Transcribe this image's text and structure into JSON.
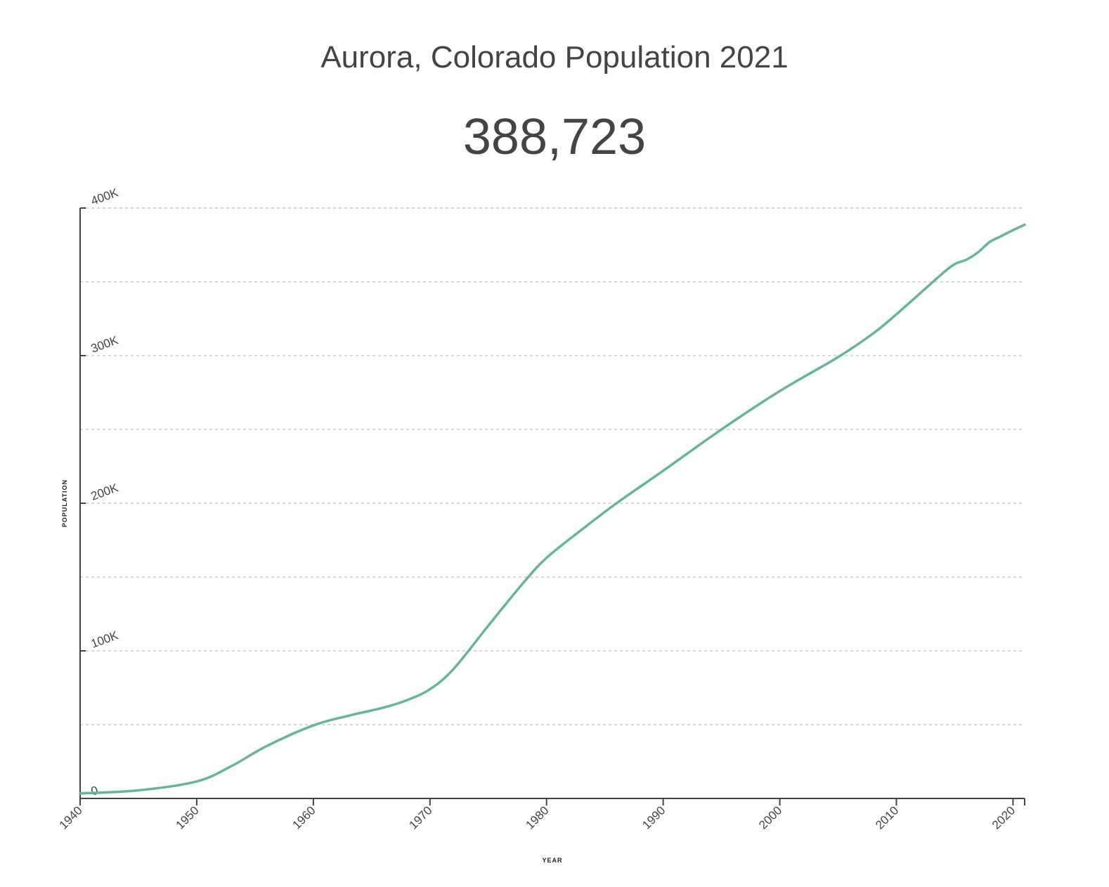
{
  "header": {
    "title": "Aurora, Colorado Population 2021",
    "current_value": "388,723"
  },
  "colors": {
    "line": "#66b3a0",
    "grid": "#cccccc",
    "axis": "#444444",
    "text": "#444444"
  },
  "chart_data": {
    "type": "line",
    "xlabel": "YEAR",
    "ylabel": "POPULATION",
    "xlim": [
      1940,
      2021
    ],
    "ylim": [
      0,
      400000
    ],
    "grid": true,
    "grid_values": [
      50000,
      100000,
      150000,
      200000,
      250000,
      300000,
      350000,
      400000
    ],
    "x_ticks": [
      1940,
      1950,
      1960,
      1970,
      1980,
      1990,
      2000,
      2010,
      2020
    ],
    "x_tick_labels": [
      "1940",
      "1950",
      "1960",
      "1970",
      "1980",
      "1990",
      "2000",
      "2010",
      "2020"
    ],
    "y_ticks": [
      0,
      100000,
      200000,
      300000,
      400000
    ],
    "y_tick_labels": [
      "0",
      "100K",
      "200K",
      "300K",
      "400K"
    ],
    "series": [
      {
        "x": [
          1940,
          1945,
          1950,
          1953,
          1956,
          1960,
          1963,
          1966,
          1968,
          1970,
          1972,
          1975,
          1978,
          1980,
          1983,
          1986,
          1990,
          1995,
          2000,
          2005,
          2008,
          2010,
          2012,
          2014,
          2015,
          2016,
          2017,
          2018,
          2019,
          2020,
          2021
        ],
        "y": [
          3400,
          5500,
          11500,
          22000,
          35500,
          49500,
          56000,
          61500,
          66500,
          74000,
          87500,
          117000,
          146000,
          163000,
          182000,
          200000,
          222000,
          250000,
          276000,
          299000,
          315000,
          328000,
          342000,
          356000,
          362000,
          365000,
          370000,
          377000,
          381000,
          385000,
          388723
        ]
      }
    ]
  }
}
